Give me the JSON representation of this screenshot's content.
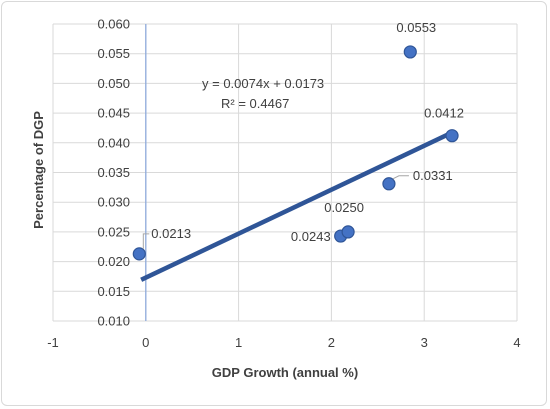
{
  "chart_data": {
    "type": "scatter",
    "title": "",
    "xlabel": "GDP Growth (annual %)",
    "ylabel": "Percentage of DGP",
    "xlim": [
      -1,
      4
    ],
    "ylim": [
      0.01,
      0.06
    ],
    "x_ticks": [
      "-1",
      "0",
      "1",
      "2",
      "3",
      "4"
    ],
    "y_ticks": [
      "0.010",
      "0.015",
      "0.020",
      "0.025",
      "0.030",
      "0.035",
      "0.040",
      "0.045",
      "0.050",
      "0.055",
      "0.060"
    ],
    "grid": true,
    "legend": "none",
    "marker_color": "#4472c4",
    "trendline_color": "#2f5597",
    "points": [
      {
        "x": -0.07,
        "y": 0.0213,
        "label": "0.0213"
      },
      {
        "x": 2.1,
        "y": 0.0243,
        "label": "0.0243"
      },
      {
        "x": 2.18,
        "y": 0.025,
        "label": "0.0250"
      },
      {
        "x": 2.62,
        "y": 0.0331,
        "label": "0.0331"
      },
      {
        "x": 3.3,
        "y": 0.0412,
        "label": "0.0412"
      },
      {
        "x": 2.85,
        "y": 0.0553,
        "label": "0.0553"
      }
    ],
    "trendline": {
      "slope": 0.0074,
      "intercept": 0.0173,
      "x_from": -0.05,
      "x_to": 3.3,
      "equation": "y = 0.0074x + 0.0173",
      "r_squared": "R² = 0.4467"
    }
  }
}
